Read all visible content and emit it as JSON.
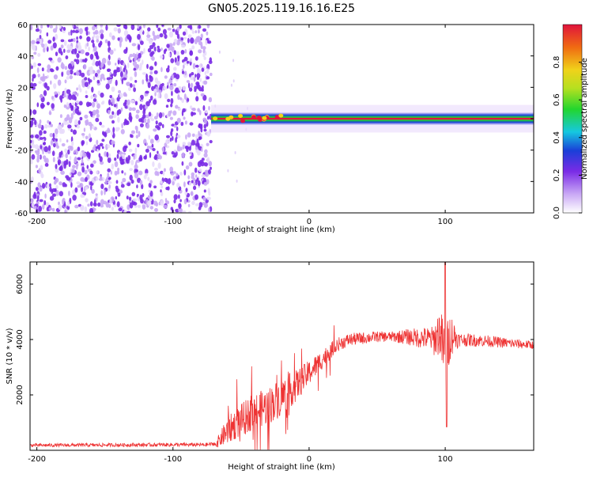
{
  "title": "GN05.2025.119.16.16.E25",
  "colors": {
    "snr_line": "#ee3333",
    "dots": "#7a2be6",
    "dots_light": "#c9a8f5",
    "band_core": "#e0143c",
    "band_mid": "#22d62e",
    "band_outer": "#1a3fd8"
  },
  "chart_data": [
    {
      "type": "heatmap",
      "title": "GN05.2025.119.16.16.E25",
      "xlabel": "Height of straight line (km)",
      "ylabel": "Frequency (Hz)",
      "xlim": [
        -205,
        165
      ],
      "ylim": [
        -60,
        60
      ],
      "x_ticks": [
        -200,
        -100,
        0,
        100
      ],
      "y_ticks": [
        -60,
        -40,
        -20,
        0,
        20,
        40,
        60
      ],
      "noise_region_x": [
        -205,
        -72
      ],
      "signal_band": {
        "x_start": -72,
        "x_end": 165,
        "frequency_center": 0,
        "frequency_halfwidth": 4
      },
      "colorbar": {
        "label": "Normalized spectral amplitude",
        "range": [
          0,
          1
        ],
        "ticks": [
          0.0,
          0.2,
          0.4,
          0.6,
          0.8
        ],
        "tick_labels": [
          "0.0",
          "0.2",
          "0.4",
          "0.6",
          "0.8"
        ]
      }
    },
    {
      "type": "line",
      "xlabel": "Height of straight line (km)",
      "ylabel": "SNR (10 * v/v)",
      "xlim": [
        -205,
        165
      ],
      "ylim": [
        0,
        6800
      ],
      "x_ticks": [
        -200,
        -100,
        0,
        100
      ],
      "y_ticks": [
        2000,
        4000,
        6000
      ],
      "envelope": {
        "x": [
          -205,
          -150,
          -100,
          -75,
          -68,
          -60,
          -50,
          -40,
          -30,
          -20,
          -10,
          0,
          10,
          20,
          30,
          50,
          70,
          85,
          92,
          96,
          100,
          104,
          110,
          130,
          150,
          165
        ],
        "y": [
          180,
          190,
          200,
          200,
          250,
          700,
          1100,
          1400,
          1600,
          1950,
          2300,
          2800,
          3300,
          3800,
          4000,
          4100,
          4100,
          4050,
          4000,
          4300,
          3300,
          4200,
          4000,
          3950,
          3850,
          3800
        ]
      },
      "noise_amplitude": {
        "x": [
          -205,
          -70,
          -60,
          -40,
          -20,
          0,
          20,
          60,
          90,
          100,
          110,
          165
        ],
        "y": [
          60,
          70,
          500,
          650,
          700,
          450,
          250,
          180,
          450,
          1200,
          250,
          150
        ]
      },
      "peak": {
        "x": 100,
        "y": 6800
      },
      "trough": {
        "x": 101,
        "y": 850
      }
    }
  ]
}
